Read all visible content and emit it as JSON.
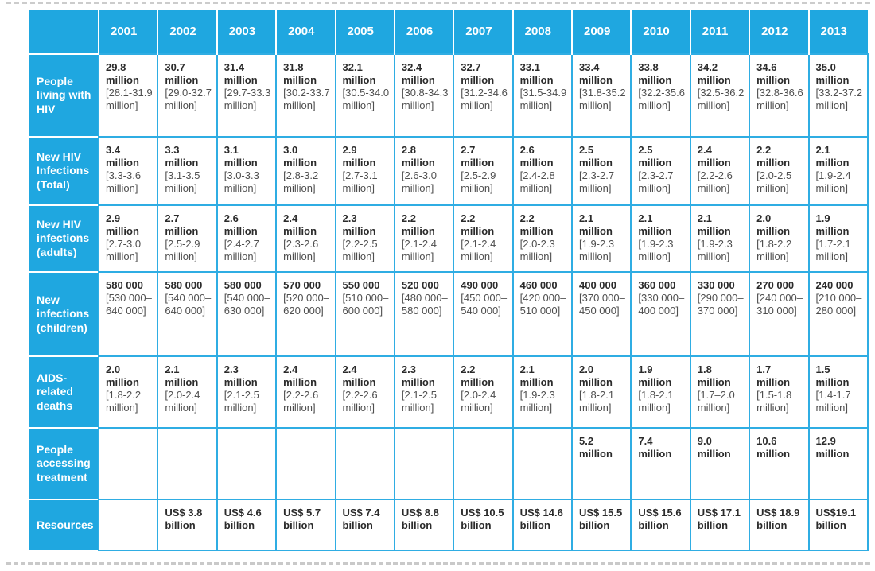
{
  "chart_data": {
    "type": "table",
    "corner_label": "",
    "columns": [
      "2001",
      "2002",
      "2003",
      "2004",
      "2005",
      "2006",
      "2007",
      "2008",
      "2009",
      "2010",
      "2011",
      "2012",
      "2013"
    ],
    "rows": [
      {
        "label": "People living with HIV",
        "cells": [
          {
            "value": "29.8 million",
            "range": "[28.1-31.9 million]"
          },
          {
            "value": "30.7 million",
            "range": "[29.0-32.7 million]"
          },
          {
            "value": "31.4 million",
            "range": "[29.7-33.3 million]"
          },
          {
            "value": "31.8 million",
            "range": "[30.2-33.7 million]"
          },
          {
            "value": "32.1 million",
            "range": "[30.5-34.0 million]"
          },
          {
            "value": "32.4 million",
            "range": "[30.8-34.3 million]"
          },
          {
            "value": "32.7 million",
            "range": "[31.2-34.6 million]"
          },
          {
            "value": "33.1 million",
            "range": "[31.5-34.9 million]"
          },
          {
            "value": "33.4 million",
            "range": "[31.8-35.2 million]"
          },
          {
            "value": "33.8 million",
            "range": "[32.2-35.6 million]"
          },
          {
            "value": "34.2 million",
            "range": "[32.5-36.2 million]"
          },
          {
            "value": "34.6 million",
            "range": "[32.8-36.6 million]"
          },
          {
            "value": "35.0 million",
            "range": "[33.2-37.2 million]"
          }
        ]
      },
      {
        "label": "New HIV Infections (Total)",
        "cells": [
          {
            "value": "3.4 million",
            "range": "[3.3-3.6 million]"
          },
          {
            "value": "3.3 million",
            "range": "[3.1-3.5 million]"
          },
          {
            "value": "3.1 million",
            "range": "[3.0-3.3 million]"
          },
          {
            "value": "3.0 million",
            "range": "[2.8-3.2 million]"
          },
          {
            "value": "2.9 million",
            "range": "[2.7-3.1 million]"
          },
          {
            "value": "2.8 million",
            "range": "[2.6-3.0 million]"
          },
          {
            "value": "2.7 million",
            "range": "[2.5-2.9 million]"
          },
          {
            "value": "2.6 million",
            "range": "[2.4-2.8 million]"
          },
          {
            "value": "2.5 million",
            "range": "[2.3-2.7 million]"
          },
          {
            "value": "2.5 million",
            "range": "[2.3-2.7 million]"
          },
          {
            "value": "2.4 million",
            "range": "[2.2-2.6 million]"
          },
          {
            "value": "2.2 million",
            "range": "[2.0-2.5 million]"
          },
          {
            "value": "2.1 million",
            "range": "[1.9-2.4 million]"
          }
        ]
      },
      {
        "label": "New HIV infections (adults)",
        "cells": [
          {
            "value": "2.9 million",
            "range": "[2.7-3.0 million]"
          },
          {
            "value": "2.7 million",
            "range": "[2.5-2.9 million]"
          },
          {
            "value": "2.6 million",
            "range": "[2.4-2.7 million]"
          },
          {
            "value": "2.4 million",
            "range": "[2.3-2.6 million]"
          },
          {
            "value": "2.3 million",
            "range": "[2.2-2.5 million]"
          },
          {
            "value": "2.2 million",
            "range": "[2.1-2.4 million]"
          },
          {
            "value": "2.2 million",
            "range": "[2.1-2.4 million]"
          },
          {
            "value": "2.2 million",
            "range": "[2.0-2.3 million]"
          },
          {
            "value": "2.1 million",
            "range": "[1.9-2.3 million]"
          },
          {
            "value": "2.1 million",
            "range": "[1.9-2.3 million]"
          },
          {
            "value": "2.1 million",
            "range": "[1.9-2.3 million]"
          },
          {
            "value": "2.0 million",
            "range": "[1.8-2.2 million]"
          },
          {
            "value": "1.9 million",
            "range": "[1.7-2.1 million]"
          }
        ]
      },
      {
        "label": "New infections (children)",
        "cells": [
          {
            "value": "580 000",
            "range": "[530 000– 640 000]"
          },
          {
            "value": "580 000",
            "range": "[540 000– 640 000]"
          },
          {
            "value": "580 000",
            "range": "[540 000– 630 000]"
          },
          {
            "value": "570 000",
            "range": "[520 000– 620 000]"
          },
          {
            "value": "550 000",
            "range": "[510 000– 600 000]"
          },
          {
            "value": "520 000",
            "range": "[480 000– 580 000]"
          },
          {
            "value": "490 000",
            "range": "[450 000– 540 000]"
          },
          {
            "value": "460 000",
            "range": "[420 000– 510 000]"
          },
          {
            "value": "400 000",
            "range": "[370 000– 450 000]"
          },
          {
            "value": "360 000",
            "range": "[330 000– 400 000]"
          },
          {
            "value": "330 000",
            "range": "[290 000– 370 000]"
          },
          {
            "value": "270 000",
            "range": "[240 000– 310 000]"
          },
          {
            "value": "240 000",
            "range": "[210 000– 280 000]"
          }
        ]
      },
      {
        "label": "AIDS-related deaths",
        "cells": [
          {
            "value": "2.0 million",
            "range": "[1.8-2.2 million]"
          },
          {
            "value": "2.1 million",
            "range": "[2.0-2.4 million]"
          },
          {
            "value": "2.3 million",
            "range": "[2.1-2.5 million]"
          },
          {
            "value": "2.4 million",
            "range": "[2.2-2.6 million]"
          },
          {
            "value": "2.4 million",
            "range": "[2.2-2.6 million]"
          },
          {
            "value": "2.3 million",
            "range": "[2.1-2.5 million]"
          },
          {
            "value": "2.2 million",
            "range": "[2.0-2.4 million]"
          },
          {
            "value": "2.1 million",
            "range": "[1.9-2.3 million]"
          },
          {
            "value": "2.0 million",
            "range": "[1.8-2.1 million]"
          },
          {
            "value": "1.9 million",
            "range": "[1.8-2.1 million]"
          },
          {
            "value": "1.8 million",
            "range": "[1.7–2.0 million]"
          },
          {
            "value": "1.7 million",
            "range": "[1.5-1.8 million]"
          },
          {
            "value": "1.5 million",
            "range": "[1.4-1.7 million]"
          }
        ]
      },
      {
        "label": "People accessing treatment",
        "cells": [
          {
            "value": "",
            "range": ""
          },
          {
            "value": "",
            "range": ""
          },
          {
            "value": "",
            "range": ""
          },
          {
            "value": "",
            "range": ""
          },
          {
            "value": "",
            "range": ""
          },
          {
            "value": "",
            "range": ""
          },
          {
            "value": "",
            "range": ""
          },
          {
            "value": "",
            "range": ""
          },
          {
            "value": "5.2 million",
            "range": ""
          },
          {
            "value": "7.4 million",
            "range": ""
          },
          {
            "value": "9.0 million",
            "range": ""
          },
          {
            "value": "10.6 million",
            "range": ""
          },
          {
            "value": "12.9 million",
            "range": ""
          }
        ]
      },
      {
        "label": "Resources",
        "cells": [
          {
            "value": "",
            "range": ""
          },
          {
            "value": "US$ 3.8 billion",
            "range": ""
          },
          {
            "value": "US$ 4.6 billion",
            "range": ""
          },
          {
            "value": "US$ 5.7 billion",
            "range": ""
          },
          {
            "value": "US$ 7.4 billion",
            "range": ""
          },
          {
            "value": "US$ 8.8 billion",
            "range": ""
          },
          {
            "value": "US$ 10.5 billion",
            "range": ""
          },
          {
            "value": "US$ 14.6 billion",
            "range": ""
          },
          {
            "value": "US$ 15.5 billion",
            "range": ""
          },
          {
            "value": "US$ 15.6 billion",
            "range": ""
          },
          {
            "value": "US$ 17.1 billion",
            "range": ""
          },
          {
            "value": "US$ 18.9 billion",
            "range": ""
          },
          {
            "value": "US$19.1 billion",
            "range": ""
          }
        ]
      }
    ]
  },
  "colors": {
    "table_blue": "#1fa7e0",
    "grid_blue": "#2fade3",
    "header_text": "#ffffff",
    "value_text": "#2b2b2b",
    "range_text": "#4f4f4f",
    "page_line_gray": "#c9c9c9"
  }
}
